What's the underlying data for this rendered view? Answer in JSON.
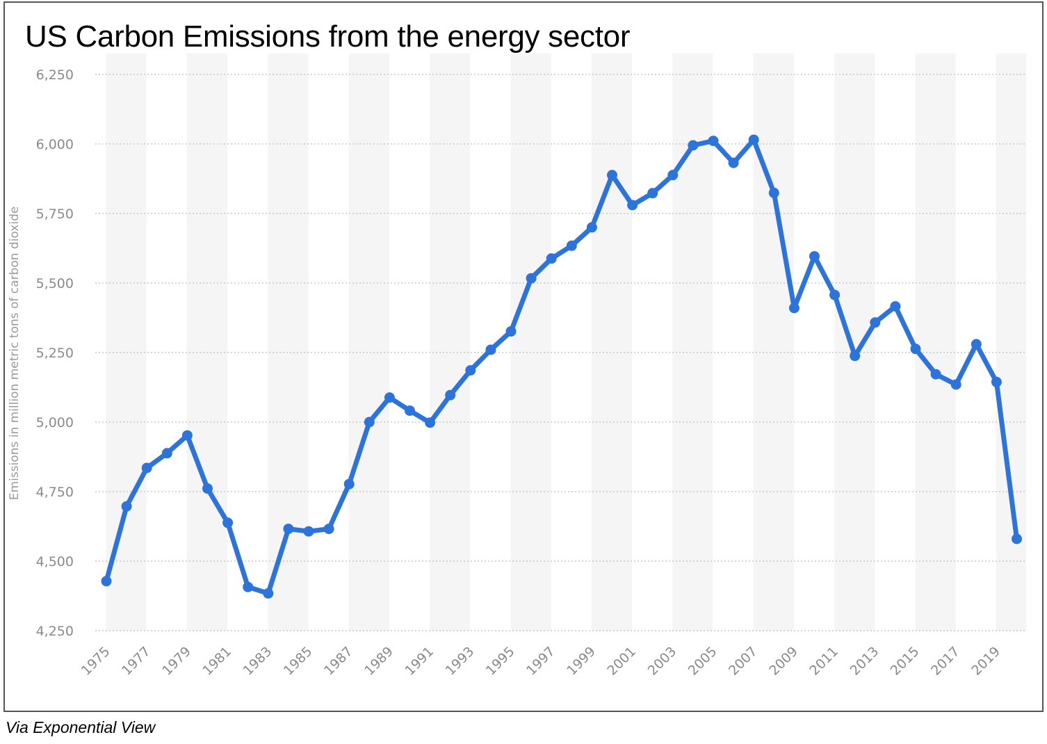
{
  "title": "US Carbon Emissions from the energy sector",
  "caption": "Via Exponential View",
  "colors": {
    "line": "#2c74dc",
    "grid": "#bdbdbd",
    "band": "#f5f5f5",
    "tick": "#8a8a8a"
  },
  "chart_data": {
    "type": "line",
    "title": "US Carbon Emissions from the energy sector",
    "xlabel": "",
    "ylabel": "Emissions in million metric tons of carbon dioxide",
    "ylim": [
      4250,
      6250
    ],
    "yticks": [
      4250,
      4500,
      4750,
      5000,
      5250,
      5500,
      5750,
      6000,
      6250
    ],
    "ytick_labels": [
      "4,250",
      "4,500",
      "4,750",
      "5,000",
      "5,250",
      "5,500",
      "5,750",
      "6,000",
      "6,250"
    ],
    "xtick_labels": [
      "1975",
      "1977",
      "1979",
      "1981",
      "1983",
      "1985",
      "1987",
      "1989",
      "1991",
      "1993",
      "1995",
      "1997",
      "1999",
      "2001",
      "2003",
      "2005",
      "2007",
      "2009",
      "2011",
      "2013",
      "2015",
      "2017",
      "2019"
    ],
    "grid": true,
    "legend": "none",
    "series": [
      {
        "x": [
          1975,
          1976,
          1977,
          1978,
          1979,
          1980,
          1981,
          1982,
          1983,
          1984,
          1985,
          1986,
          1987,
          1988,
          1989,
          1990,
          1991,
          1992,
          1993,
          1994,
          1995,
          1996,
          1997,
          1998,
          1999,
          2000,
          2001,
          2002,
          2003,
          2004,
          2005,
          2006,
          2007,
          2008,
          2009,
          2010,
          2011,
          2012,
          2013,
          2014,
          2015,
          2016,
          2017,
          2018,
          2019,
          2020
        ],
        "values": [
          4428,
          4697,
          4835,
          4888,
          4952,
          4761,
          4638,
          4407,
          4384,
          4616,
          4607,
          4616,
          4777,
          5000,
          5088,
          5041,
          4998,
          5097,
          5186,
          5260,
          5326,
          5517,
          5588,
          5634,
          5700,
          5888,
          5780,
          5823,
          5888,
          5995,
          6011,
          5932,
          6015,
          5824,
          5410,
          5596,
          5457,
          5238,
          5358,
          5416,
          5263,
          5172,
          5135,
          5280,
          5144,
          4580
        ]
      }
    ]
  }
}
